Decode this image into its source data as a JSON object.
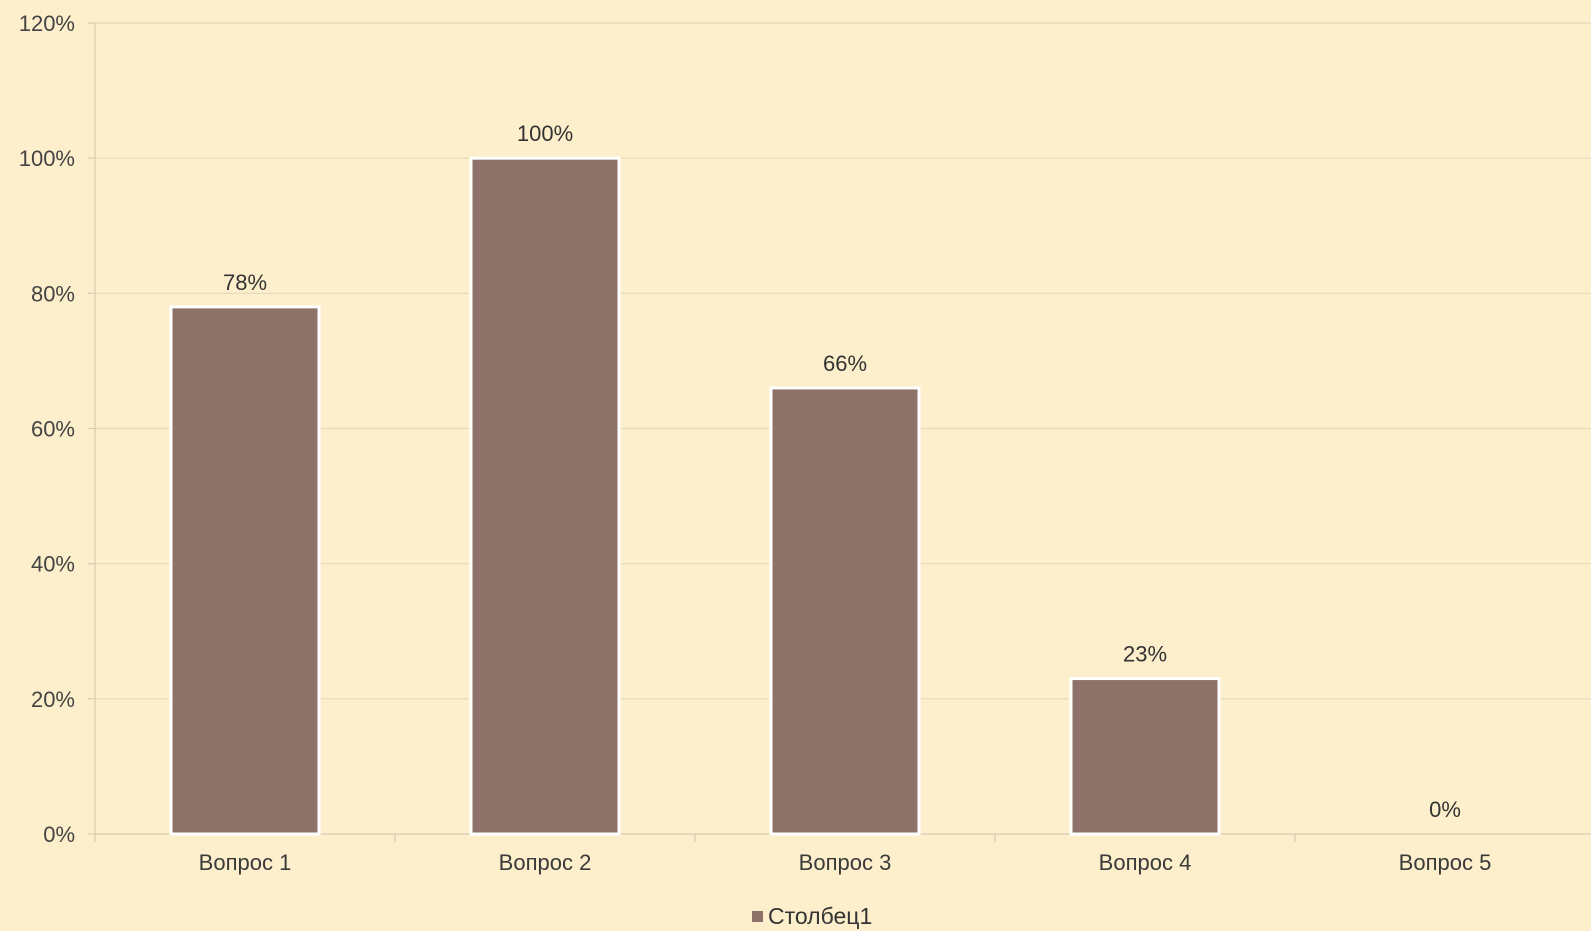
{
  "chart_data": {
    "type": "bar",
    "categories": [
      "Вопрос 1",
      "Вопрос 2",
      "Вопрос 3",
      "Вопрос 4",
      "Вопрос 5"
    ],
    "series": [
      {
        "name": "Столбец1",
        "values": [
          78,
          100,
          66,
          23,
          0
        ],
        "color": "#8c7268"
      }
    ],
    "data_labels": [
      "78%",
      "100%",
      "66%",
      "23%",
      "0%"
    ],
    "y_ticks": [
      0,
      20,
      40,
      60,
      80,
      100,
      120
    ],
    "y_tick_labels": [
      "0%",
      "20%",
      "40%",
      "60%",
      "80%",
      "100%",
      "120%"
    ],
    "ylim": [
      0,
      120
    ],
    "y_unit": "%",
    "grid": true,
    "legend_position": "bottom",
    "title": "",
    "xlabel": "",
    "ylabel": "",
    "colors": {
      "background": "#fdefcb",
      "bar": "#8c7268",
      "bar_outline": "#ffffff",
      "grid": "#e4d8bd"
    }
  }
}
